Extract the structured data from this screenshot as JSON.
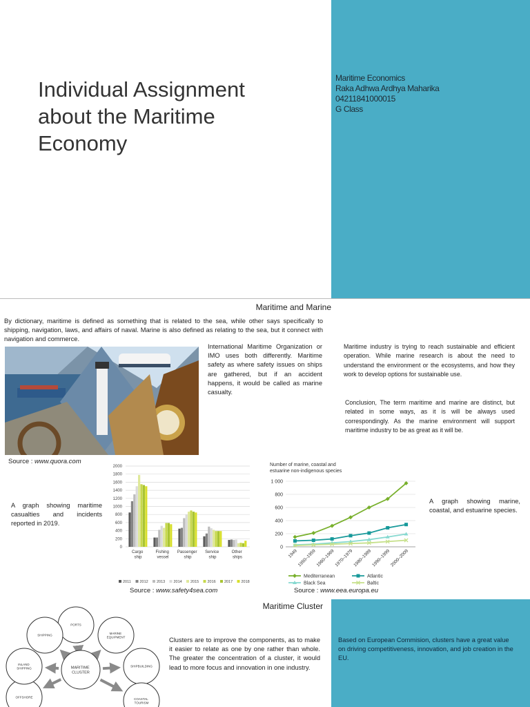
{
  "slide1": {
    "title": "Individual Assignment about the Maritime Economy",
    "info": [
      "Maritime Economics",
      "Raka Adhwa Ardhya Maharika",
      "04211841000015",
      "G Class"
    ]
  },
  "slide2": {
    "heading": "Maritime and Marine",
    "definition": "By dictionary, maritime is defined as something that is related to the sea, while other says specifically to shipping, navigation, laws, and affairs of naval. Marine is also defined as relating to the sea, but it connect with navigation and commerce.",
    "imo_text": "International Maritime Organization or IMO uses both differently. Maritime safety as where safety issues on ships are gathered, but if an accident happens, it would be called as marine casualty.",
    "industry_text": "Maritime industry is trying to reach sustainable and efficient operation. While marine research is about the need to understand the environment or the ecosystems, and how they work to develop options for sustainable use.",
    "conclusion": "Conclusion, The term maritime and marine are distinct, but related in some ways, as it is will be always used correspondingly. As the marine environment will support maritime industry to be as great as it will be.",
    "image_source": {
      "label": "Source :",
      "url": "www.quora.com"
    },
    "casualties_caption": "A graph showing maritime casualties and incidents reported in 2019.",
    "casualties_chart": {
      "type": "bar",
      "categories": [
        "Cargo ship",
        "Fishing vessel",
        "Passenger ship",
        "Service ship",
        "Other ships"
      ],
      "series": [
        {
          "name": "2011",
          "color": "#5a5a5a",
          "values": [
            850,
            230,
            450,
            260,
            170
          ]
        },
        {
          "name": "2012",
          "color": "#858585",
          "values": [
            1130,
            230,
            470,
            330,
            180
          ]
        },
        {
          "name": "2013",
          "color": "#bdbdbd",
          "values": [
            1300,
            420,
            710,
            500,
            170
          ]
        },
        {
          "name": "2014",
          "color": "#dadada",
          "values": [
            1500,
            520,
            800,
            460,
            180
          ]
        },
        {
          "name": "2015",
          "color": "#dfe89a",
          "values": [
            1780,
            470,
            870,
            420,
            90
          ]
        },
        {
          "name": "2016",
          "color": "#c6d84c",
          "values": [
            1550,
            590,
            900,
            390,
            100
          ]
        },
        {
          "name": "2017",
          "color": "#a9c434",
          "values": [
            1530,
            590,
            870,
            390,
            90
          ]
        },
        {
          "name": "2018",
          "color": "#d7df2c",
          "values": [
            1500,
            560,
            850,
            390,
            150
          ]
        }
      ],
      "ylim": [
        0,
        2000
      ],
      "yticks": [
        0,
        200,
        400,
        600,
        800,
        1000,
        1200,
        1400,
        1600,
        1800,
        2000
      ],
      "grid": true
    },
    "casualties_source": {
      "label": "Source :",
      "url": "www.safety4sea.com"
    },
    "species_caption": "A graph showing marine, coastal, and estuarine species.",
    "species_chart": {
      "type": "line",
      "title_lines": [
        "Number of marine, coastal and",
        "estuarine non-indigenous species"
      ],
      "categories": [
        "1949",
        "1950–1959",
        "1960–1969",
        "1970–1979",
        "1980–1989",
        "1990–1999",
        "2000–2009"
      ],
      "series": [
        {
          "name": "Mediterranean",
          "color": "#78b02c",
          "marker": "diamond",
          "values": [
            150,
            210,
            320,
            450,
            600,
            730,
            970
          ]
        },
        {
          "name": "Atlantic",
          "color": "#17999a",
          "marker": "square",
          "values": [
            90,
            100,
            120,
            170,
            210,
            290,
            340
          ]
        },
        {
          "name": "Black Sea",
          "color": "#86d9d0",
          "marker": "triangle",
          "values": [
            30,
            40,
            60,
            80,
            110,
            150,
            195
          ]
        },
        {
          "name": "Baltic",
          "color": "#c6e08a",
          "marker": "cross",
          "values": [
            20,
            30,
            40,
            50,
            60,
            80,
            100
          ]
        }
      ],
      "ylim": [
        0,
        1000
      ],
      "yticks": [
        0,
        200,
        400,
        600,
        800,
        {
          "value": 1000,
          "label": "1 000"
        }
      ],
      "grid": true
    },
    "species_source": {
      "label": "Source :",
      "url": "www.eea.europa.eu"
    }
  },
  "slide3": {
    "heading": "Maritime Cluster",
    "text": "Clusters are to improve the components, as to make it easier to relate as one by one rather than whole. The greater the concentration of a cluster, it would lead to more focus and innovation in one industry.",
    "commission_text": "Based on European Commision, clusters have a great value on driving competitiveness, innovation, and job creation in the EU.",
    "diagram": {
      "center": "MARITIME CLUSTER",
      "nodes": [
        "PORTS",
        "MARINE EQUIPMENT",
        "SHIPBUILDING",
        "COASTAL TOURISM",
        "OFFSHORE",
        "INLAND SHIPPING",
        "SHIPPING"
      ]
    }
  }
}
